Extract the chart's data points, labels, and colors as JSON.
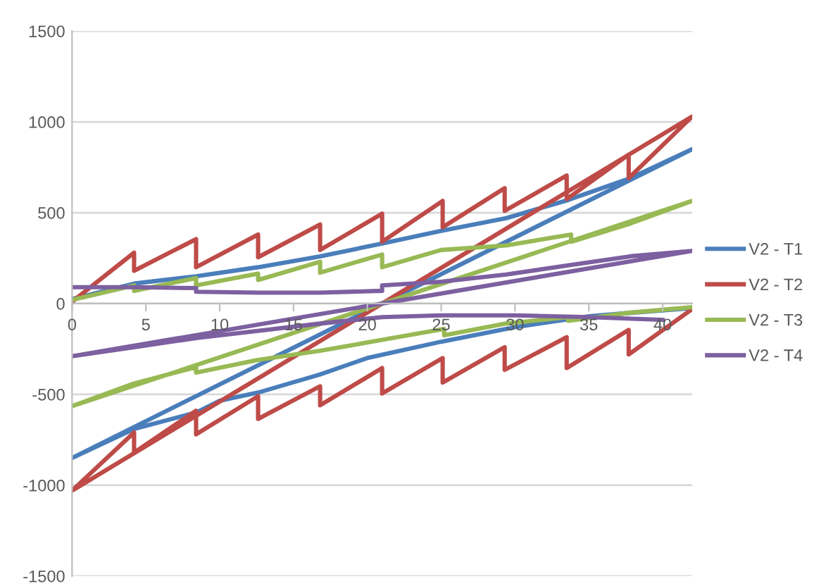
{
  "chart_data": {
    "type": "line",
    "legend": "right",
    "grid": "y",
    "xlim": [
      0,
      42
    ],
    "xticks": [
      0,
      5,
      10,
      15,
      20,
      25,
      30,
      35,
      40
    ],
    "ylim": [
      -1500,
      1500
    ],
    "yticks": [
      -1500,
      -1000,
      -500,
      0,
      500,
      1000,
      1500
    ],
    "line_style": "solid",
    "marker": "none",
    "series": [
      {
        "name": "V2 - T1",
        "color": "#4a7ebb",
        "x": [
          0,
          4.2,
          8.4,
          12.6,
          16.8,
          21,
          25,
          29.4,
          33.6,
          37.8,
          42,
          0,
          4.2,
          8.4,
          10,
          12.6,
          16.8,
          20,
          25,
          30,
          35,
          38,
          42
        ],
        "values": [
          25,
          110,
          150,
          200,
          260,
          330,
          400,
          470,
          570,
          690,
          850,
          -850,
          -690,
          -600,
          -535,
          -490,
          -390,
          -300,
          -210,
          -130,
          -70,
          -50,
          -25
        ]
      },
      {
        "name": "V2 - T2",
        "color": "#be4b48",
        "x": [
          0,
          4.2,
          4.2,
          8.4,
          8.4,
          12.6,
          12.6,
          16.8,
          16.8,
          21,
          21,
          25.1,
          25.1,
          29.3,
          29.3,
          33.5,
          33.5,
          37.7,
          37.7,
          42,
          0,
          4.2,
          4.2,
          8.4,
          8.4,
          12.6,
          12.6,
          16.8,
          16.8,
          21,
          21,
          25.1,
          25.1,
          29.3,
          29.3,
          33.5,
          33.5,
          37.7,
          37.7,
          42
        ],
        "values": [
          10,
          280,
          180,
          355,
          200,
          380,
          255,
          435,
          295,
          495,
          340,
          565,
          420,
          635,
          510,
          705,
          575,
          820,
          690,
          1030,
          -1030,
          -710,
          -820,
          -590,
          -720,
          -510,
          -635,
          -455,
          -560,
          -355,
          -495,
          -300,
          -435,
          -240,
          -365,
          -185,
          -355,
          -145,
          -280,
          -30
        ]
      },
      {
        "name": "V2 - T3",
        "color": "#98b954",
        "x": [
          0,
          4.2,
          4.2,
          8.4,
          8.4,
          12.6,
          12.6,
          16.8,
          16.8,
          21,
          21,
          25,
          29.4,
          33.8,
          33.8,
          37.8,
          42,
          0,
          4.2,
          8.4,
          8.4,
          12.6,
          16.8,
          21,
          25.2,
          25.2,
          29.4,
          33.6,
          33.6,
          37.8,
          42
        ],
        "values": [
          20,
          100,
          70,
          140,
          100,
          165,
          130,
          230,
          170,
          270,
          200,
          295,
          320,
          380,
          340,
          440,
          565,
          -565,
          -440,
          -350,
          -380,
          -310,
          -260,
          -200,
          -140,
          -175,
          -110,
          -75,
          -95,
          -50,
          -20
        ]
      },
      {
        "name": "V2 - T4",
        "color": "#7d60a0",
        "x": [
          0,
          4.2,
          8.4,
          8.4,
          12.6,
          16.8,
          21,
          21,
          25,
          29.4,
          33.6,
          37.8,
          42,
          0,
          4.2,
          8.4,
          12.6,
          16.8,
          21,
          25,
          30,
          35,
          40
        ],
        "values": [
          90,
          90,
          85,
          65,
          60,
          60,
          70,
          100,
          120,
          160,
          210,
          260,
          290,
          -290,
          -240,
          -190,
          -150,
          -110,
          -75,
          -65,
          -65,
          -75,
          -90
        ]
      }
    ]
  }
}
